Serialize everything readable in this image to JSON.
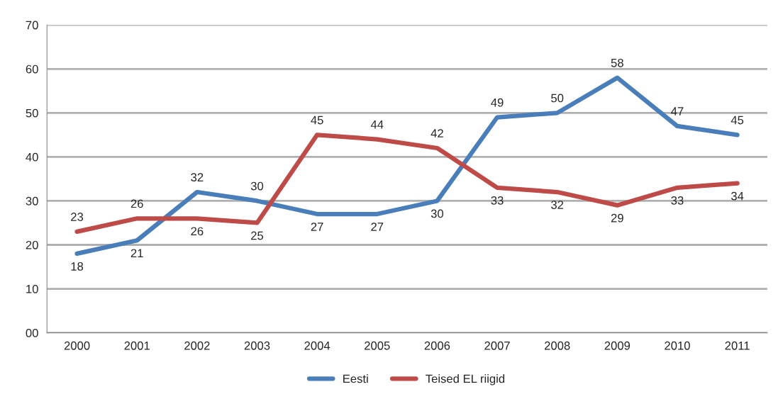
{
  "chart_data": {
    "type": "line",
    "categories": [
      "2000",
      "2001",
      "2002",
      "2003",
      "2004",
      "2005",
      "2006",
      "2007",
      "2008",
      "2009",
      "2010",
      "2011"
    ],
    "series": [
      {
        "name": "Eesti",
        "color": "#4a7ebb",
        "values": [
          18,
          21,
          32,
          30,
          27,
          27,
          30,
          49,
          50,
          58,
          47,
          45
        ]
      },
      {
        "name": "Teised EL riigid",
        "color": "#be4b48",
        "values": [
          23,
          26,
          26,
          25,
          45,
          44,
          42,
          33,
          32,
          29,
          33,
          34
        ]
      }
    ],
    "ylim": [
      0,
      70
    ],
    "yticks": [
      {
        "value": 0,
        "label": "00"
      },
      10,
      20,
      30,
      40,
      50,
      60,
      70
    ],
    "grid": "y",
    "legend": "bottom",
    "marker": "none",
    "line_style": "solid",
    "data_labels": true
  }
}
